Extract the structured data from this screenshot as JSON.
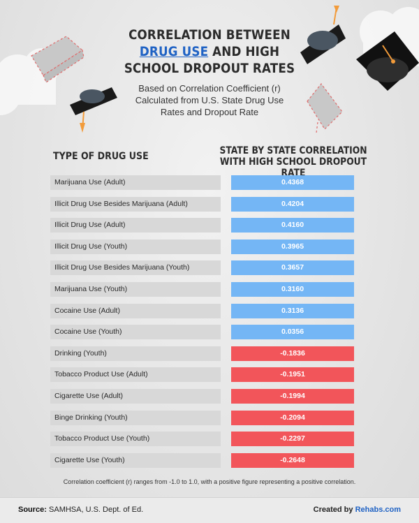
{
  "title": {
    "line1": "CORRELATION BETWEEN",
    "highlight": "DRUG USE",
    "line2_rest": " AND HIGH",
    "line3": "SCHOOL DROPOUT RATES"
  },
  "subtitle": "Based on Correlation Coefficient (r) Calculated from U.S. State Drug Use Rates and Dropout Rate",
  "headers": {
    "left": "TYPE OF DRUG USE",
    "right": "STATE BY STATE CORRELATION WITH HIGH SCHOOL DROPOUT RATE"
  },
  "colors": {
    "positive": "#74b6f5",
    "negative": "#f2555a"
  },
  "chart_data": {
    "type": "table",
    "columns": [
      "TYPE OF DRUG USE",
      "STATE BY STATE CORRELATION WITH HIGH SCHOOL DROPOUT RATE"
    ],
    "rows": [
      {
        "label": "Marijuana Use (Adult)",
        "value": "0.4368"
      },
      {
        "label": "Illicit Drug Use Besides Marijuana (Adult)",
        "value": "0.4204"
      },
      {
        "label": "Illicit Drug Use (Adult)",
        "value": "0.4160"
      },
      {
        "label": "Illicit Drug Use (Youth)",
        "value": "0.3965"
      },
      {
        "label": "Illicit Drug Use Besides Marijuana (Youth)",
        "value": "0.3657"
      },
      {
        "label": "Marijuana Use (Youth)",
        "value": "0.3160"
      },
      {
        "label": "Cocaine Use (Adult)",
        "value": "0.3136"
      },
      {
        "label": "Cocaine Use (Youth)",
        "value": "0.0356"
      },
      {
        "label": "Drinking (Youth)",
        "value": "-0.1836"
      },
      {
        "label": "Tobacco Product Use (Adult)",
        "value": "-0.1951"
      },
      {
        "label": "Cigarette Use (Adult)",
        "value": "-0.1994"
      },
      {
        "label": "Binge Drinking (Youth)",
        "value": "-0.2094"
      },
      {
        "label": "Tobacco Product Use (Youth)",
        "value": "-0.2297"
      },
      {
        "label": "Cigarette Use (Youth)",
        "value": "-0.2648"
      }
    ]
  },
  "note": "Correlation coefficient (r) ranges from -1.0 to 1.0, with a positive figure representing a positive correlation.",
  "footer": {
    "source_label": "Source:",
    "source_text": " SAMHSA, U.S. Dept. of Ed.",
    "created_label": "Created by ",
    "brand": "Rehabs.com"
  }
}
